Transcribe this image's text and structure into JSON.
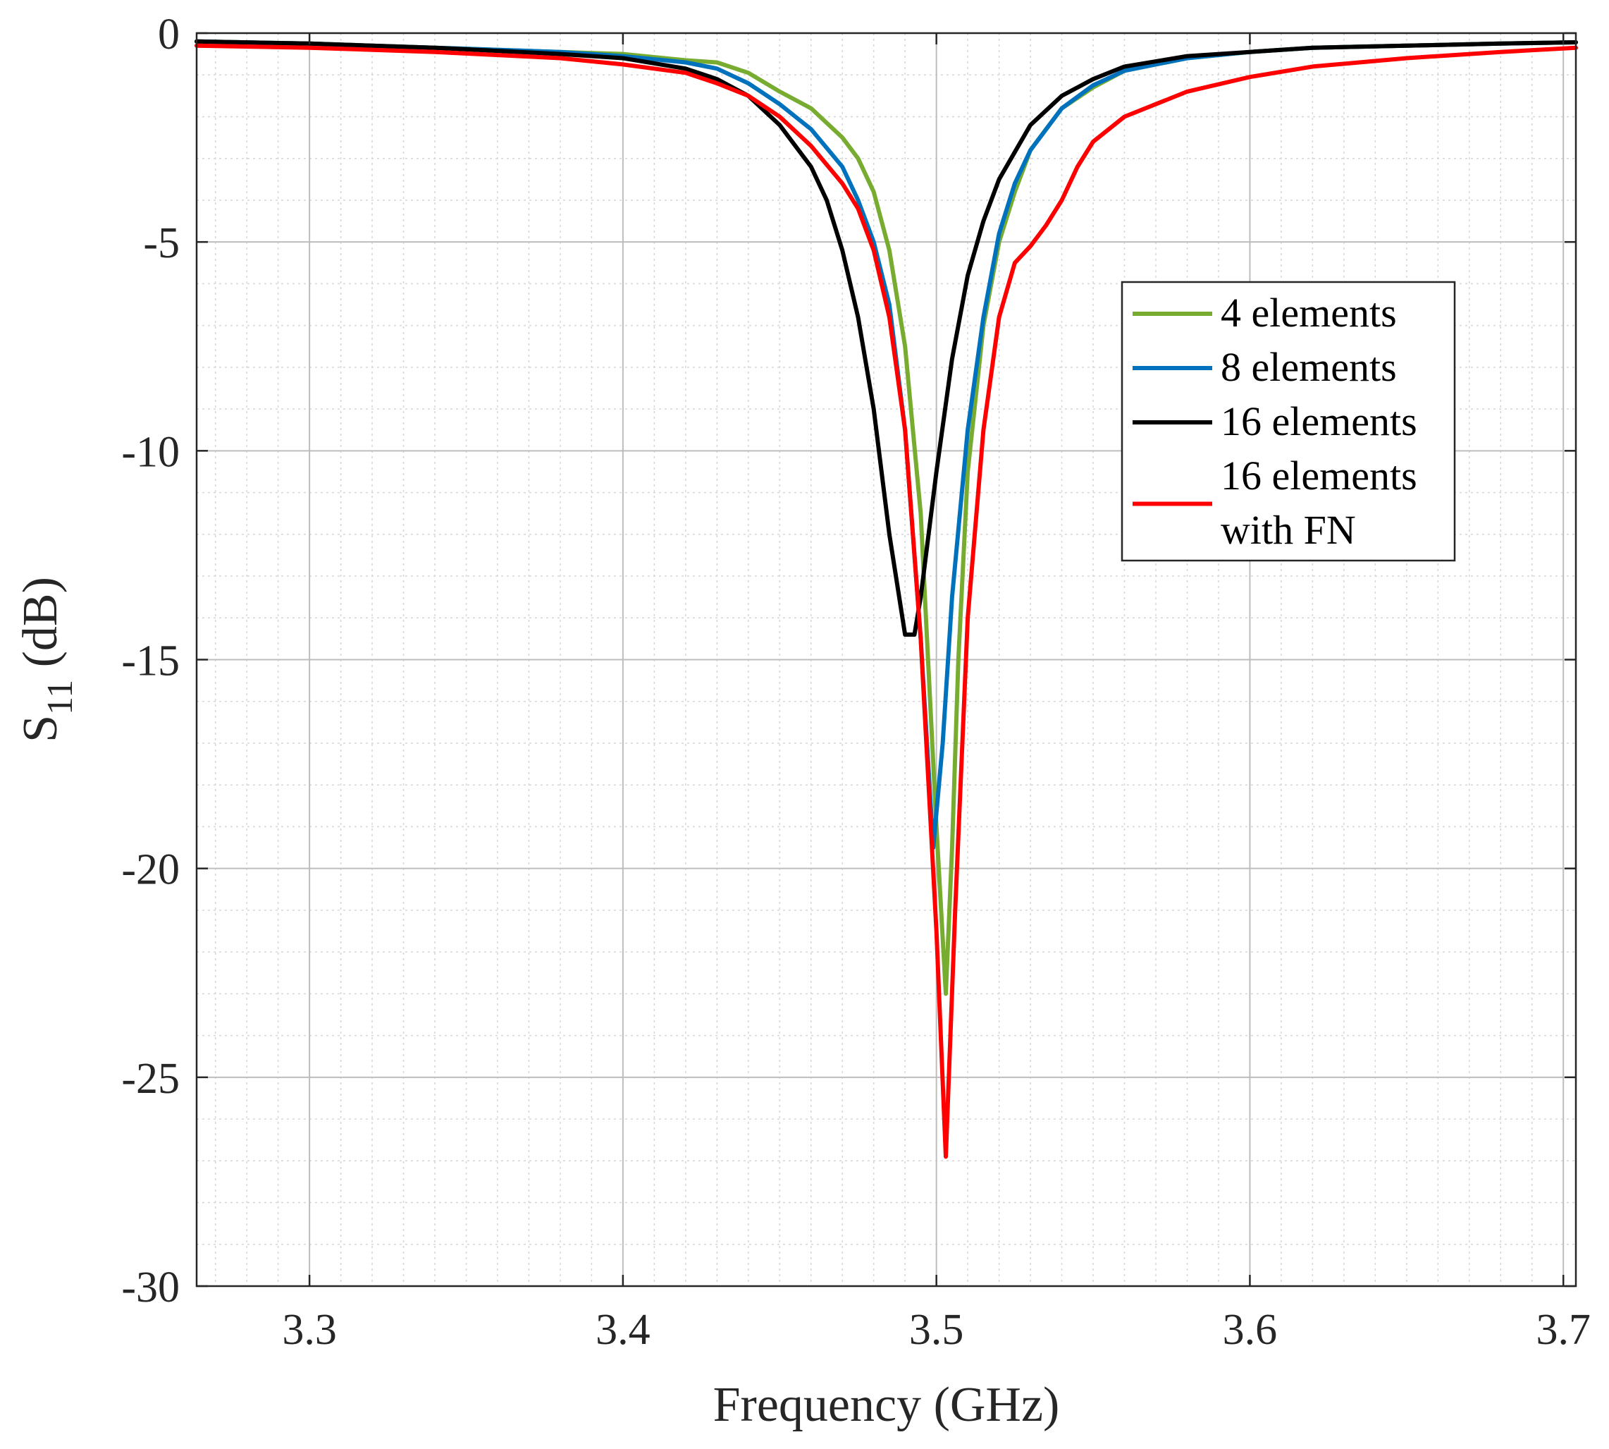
{
  "chart_data": {
    "type": "line",
    "xlabel": "Frequency (GHz)",
    "ylabel_main": "S",
    "ylabel_sub": "11",
    "ylabel_unit": " (dB)",
    "xlim": [
      3.264,
      3.704
    ],
    "ylim": [
      -30,
      0
    ],
    "xticks": [
      3.3,
      3.4,
      3.5,
      3.6,
      3.7
    ],
    "xtick_labels": [
      "3.3",
      "3.4",
      "3.5",
      "3.6",
      "3.7"
    ],
    "yticks": [
      0,
      -5,
      -10,
      -15,
      -20,
      -25,
      -30
    ],
    "ytick_labels": [
      "0",
      "-5",
      "-10",
      "-15",
      "-20",
      "-25",
      "-30"
    ],
    "minor_x_step": 0.01,
    "minor_y_step": 1,
    "grid": true,
    "legend_position": "upper-right",
    "series": [
      {
        "name": "4 elements",
        "label_lines": [
          "4 elements"
        ],
        "color": "#77ac30",
        "x": [
          3.264,
          3.3,
          3.34,
          3.38,
          3.4,
          3.42,
          3.43,
          3.44,
          3.45,
          3.46,
          3.47,
          3.475,
          3.48,
          3.485,
          3.49,
          3.495,
          3.5,
          3.503,
          3.505,
          3.507,
          3.51,
          3.515,
          3.52,
          3.525,
          3.53,
          3.54,
          3.55,
          3.56,
          3.58,
          3.6,
          3.62,
          3.65,
          3.68,
          3.704
        ],
        "y": [
          -0.2,
          -0.25,
          -0.35,
          -0.45,
          -0.5,
          -0.65,
          -0.7,
          -0.95,
          -1.4,
          -1.8,
          -2.5,
          -3.0,
          -3.8,
          -5.2,
          -7.5,
          -11.5,
          -19.0,
          -23.0,
          -19.5,
          -15.0,
          -10.5,
          -7.0,
          -5.0,
          -3.8,
          -2.8,
          -1.8,
          -1.3,
          -0.9,
          -0.6,
          -0.45,
          -0.35,
          -0.3,
          -0.25,
          -0.22
        ]
      },
      {
        "name": "8 elements",
        "label_lines": [
          "8 elements"
        ],
        "color": "#0072bd",
        "x": [
          3.264,
          3.3,
          3.34,
          3.38,
          3.4,
          3.42,
          3.43,
          3.44,
          3.45,
          3.46,
          3.47,
          3.475,
          3.48,
          3.485,
          3.49,
          3.495,
          3.499,
          3.502,
          3.505,
          3.51,
          3.515,
          3.52,
          3.525,
          3.53,
          3.54,
          3.55,
          3.56,
          3.58,
          3.6,
          3.62,
          3.65,
          3.68,
          3.704
        ],
        "y": [
          -0.2,
          -0.25,
          -0.35,
          -0.45,
          -0.55,
          -0.7,
          -0.85,
          -1.2,
          -1.7,
          -2.3,
          -3.2,
          -4.0,
          -5.0,
          -6.5,
          -9.5,
          -14.5,
          -19.5,
          -17.0,
          -13.5,
          -9.5,
          -6.8,
          -4.8,
          -3.6,
          -2.8,
          -1.8,
          -1.25,
          -0.9,
          -0.6,
          -0.45,
          -0.35,
          -0.3,
          -0.25,
          -0.22
        ]
      },
      {
        "name": "16 elements",
        "label_lines": [
          "16 elements"
        ],
        "color": "#000000",
        "x": [
          3.264,
          3.3,
          3.34,
          3.38,
          3.4,
          3.42,
          3.43,
          3.44,
          3.45,
          3.46,
          3.465,
          3.47,
          3.475,
          3.48,
          3.485,
          3.49,
          3.493,
          3.495,
          3.5,
          3.505,
          3.51,
          3.515,
          3.52,
          3.53,
          3.54,
          3.55,
          3.56,
          3.58,
          3.6,
          3.62,
          3.65,
          3.68,
          3.704
        ],
        "y": [
          -0.2,
          -0.25,
          -0.35,
          -0.5,
          -0.6,
          -0.85,
          -1.1,
          -1.5,
          -2.2,
          -3.2,
          -4.0,
          -5.2,
          -6.8,
          -9.0,
          -12.0,
          -14.4,
          -14.4,
          -13.5,
          -10.5,
          -7.8,
          -5.8,
          -4.5,
          -3.5,
          -2.2,
          -1.5,
          -1.1,
          -0.8,
          -0.55,
          -0.45,
          -0.35,
          -0.3,
          -0.25,
          -0.22
        ]
      },
      {
        "name": "16 elements with FN",
        "label_lines": [
          "16 elements",
          "with FN"
        ],
        "color": "#ff0000",
        "x": [
          3.264,
          3.3,
          3.34,
          3.38,
          3.4,
          3.42,
          3.43,
          3.44,
          3.45,
          3.46,
          3.47,
          3.475,
          3.48,
          3.485,
          3.49,
          3.495,
          3.5,
          3.503,
          3.506,
          3.51,
          3.515,
          3.52,
          3.525,
          3.53,
          3.535,
          3.54,
          3.545,
          3.55,
          3.56,
          3.58,
          3.6,
          3.62,
          3.65,
          3.68,
          3.704
        ],
        "y": [
          -0.3,
          -0.35,
          -0.45,
          -0.6,
          -0.75,
          -0.95,
          -1.2,
          -1.5,
          -2.0,
          -2.7,
          -3.6,
          -4.2,
          -5.2,
          -6.8,
          -9.5,
          -14.5,
          -21.5,
          -26.9,
          -21.0,
          -14.0,
          -9.5,
          -6.8,
          -5.5,
          -5.1,
          -4.6,
          -4.0,
          -3.2,
          -2.6,
          -2.0,
          -1.4,
          -1.05,
          -0.8,
          -0.6,
          -0.45,
          -0.35
        ]
      }
    ]
  }
}
